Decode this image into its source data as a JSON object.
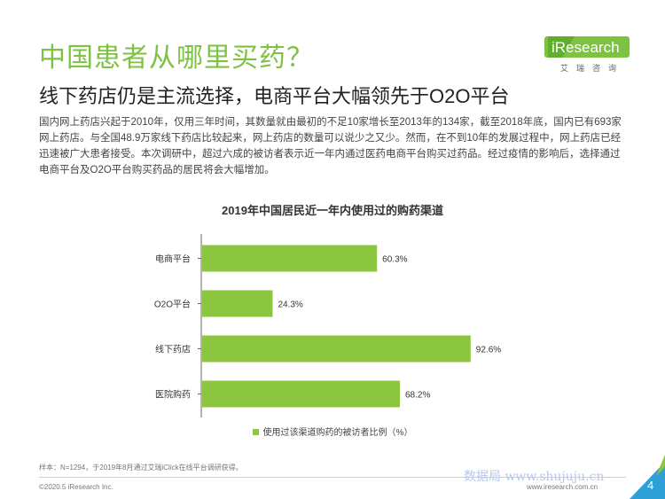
{
  "header": {
    "question": "中国患者从哪里买药？",
    "headline": "线下药店仍是主流选择，电商平台大幅领先于O2O平台"
  },
  "logo": {
    "text": "iResearch",
    "sub": "艾瑞咨询"
  },
  "body_text": "国内网上药店兴起于2010年，仅用三年时间，其数量就由最初的不足10家增长至2013年的134家，截至2018年底，国内已有693家网上药店。与全国48.9万家线下药店比较起来，网上药店的数量可以说少之又少。然而，在不到10年的发展过程中，网上药店已经迅速被广大患者接受。本次调研中，超过六成的被访者表示近一年内通过医药电商平台购买过药品。经过疫情的影响后，选择通过电商平台及O2O平台购买药品的居民将会大幅增加。",
  "chart_data": {
    "type": "bar",
    "orientation": "horizontal",
    "title": "2019年中国居民近一年内使用过的购药渠道",
    "categories": [
      "电商平台",
      "O2O平台",
      "线下药店",
      "医院购药"
    ],
    "values": [
      60.3,
      24.3,
      92.6,
      68.2
    ],
    "value_labels": [
      "60.3%",
      "24.3%",
      "92.6%",
      "68.2%"
    ],
    "series": [
      {
        "name": "使用过该渠道购药的被访者比例（%）",
        "values": [
          60.3,
          24.3,
          92.6,
          68.2
        ]
      }
    ],
    "xlim": [
      0,
      100
    ],
    "grid": false,
    "legend_position": "bottom",
    "bar_color": "#8cc63e"
  },
  "footer": {
    "note": "样本：N=1294，于2019年8月通过艾瑞iClick在线平台调研获得。",
    "copyright": "©2020.5 iResearch Inc.",
    "site": "www.iresearch.com.cn",
    "watermark": "数据局  www.shujuju.cn",
    "page_number": "4"
  },
  "colors": {
    "accent_green": "#7ec242",
    "bar": "#8cc63e",
    "corner": "#2f9fd8"
  }
}
